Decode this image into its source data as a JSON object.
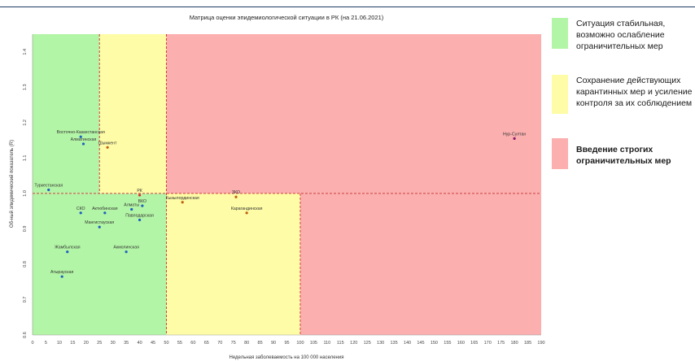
{
  "chart_data": {
    "type": "scatter",
    "title": "Матрица оценки эпидемиологической ситуации в РК (на 21.06.2021)",
    "xlabel": "Недельная заболеваемость на 100 000 населения",
    "ylabel": "Об-ный эпидемический показатель (R)",
    "xlim": [
      0,
      190
    ],
    "ylim": [
      0.6,
      1.45
    ],
    "x_ticks": [
      "0",
      "5",
      "10",
      "15",
      "20",
      "25",
      "30",
      "35",
      "40",
      "45",
      "50",
      "55",
      "60",
      "65",
      "70",
      "75",
      "80",
      "85",
      "90",
      "95",
      "100",
      "105",
      "110",
      "115",
      "120",
      "125",
      "130",
      "135",
      "140",
      "145",
      "150",
      "155",
      "160",
      "165",
      "170",
      "175",
      "180",
      "185",
      "190"
    ],
    "y_ticks": [
      "0.6",
      "0.7",
      "0.8",
      "0.9",
      "1.0",
      "1.1",
      "1.2",
      "1.3",
      "1.4"
    ],
    "thresholds": {
      "x": [
        25,
        50,
        100
      ],
      "y": [
        1.0
      ]
    },
    "zones": {
      "green": "#b3f5a6",
      "yellow": "#fefca6",
      "red": "#fbafaf"
    },
    "points": [
      {
        "label": "Нур-Султан",
        "x": 180,
        "y": 1.155,
        "color": "#8b1a6b"
      },
      {
        "label": "Восточно-Казахстанская",
        "x": 18,
        "y": 1.16,
        "color": "#1f5fbf"
      },
      {
        "label": "Алматинская",
        "x": 19,
        "y": 1.14,
        "color": "#1f5fbf"
      },
      {
        "label": "Туркестанская",
        "x": 6,
        "y": 1.01,
        "color": "#1f5fbf"
      },
      {
        "label": "Шымкент",
        "x": 28,
        "y": 1.13,
        "color": "#c06010"
      },
      {
        "label": "РК",
        "x": 40,
        "y": 0.995,
        "color": "#e03030"
      },
      {
        "label": "ВКО",
        "x": 41,
        "y": 0.965,
        "color": "#1f5fbf"
      },
      {
        "label": "Актюбинская",
        "x": 27,
        "y": 0.945,
        "color": "#1f5fbf"
      },
      {
        "label": "СКО",
        "x": 18,
        "y": 0.945,
        "color": "#1f5fbf"
      },
      {
        "label": "Алматы",
        "x": 37,
        "y": 0.955,
        "color": "#1f5fbf"
      },
      {
        "label": "Павлодарская",
        "x": 40,
        "y": 0.925,
        "color": "#1f5fbf"
      },
      {
        "label": "Мангистауская",
        "x": 25,
        "y": 0.905,
        "color": "#1f5fbf"
      },
      {
        "label": "Жамбылская",
        "x": 13,
        "y": 0.835,
        "color": "#1f5fbf"
      },
      {
        "label": "Акмолинская",
        "x": 35,
        "y": 0.835,
        "color": "#1f5fbf"
      },
      {
        "label": "Атырауская",
        "x": 11,
        "y": 0.765,
        "color": "#1f5fbf"
      },
      {
        "label": "Кызылординская",
        "x": 56,
        "y": 0.975,
        "color": "#c06010"
      },
      {
        "label": "ЗКО",
        "x": 76,
        "y": 0.99,
        "color": "#c06010"
      },
      {
        "label": "Карагандинская",
        "x": 80,
        "y": 0.945,
        "color": "#c06010"
      }
    ]
  },
  "legend": {
    "items": [
      {
        "label": "Ситуация стабильная, возможно ослабление ограничительных мер",
        "color": "#b3f5a6"
      },
      {
        "label": "Сохранение действующих карантинных мер и усиление контроля за их соблюдением",
        "color": "#fefca6"
      },
      {
        "label": "Введение строгих ограничительных мер",
        "color": "#fbafaf"
      }
    ]
  }
}
